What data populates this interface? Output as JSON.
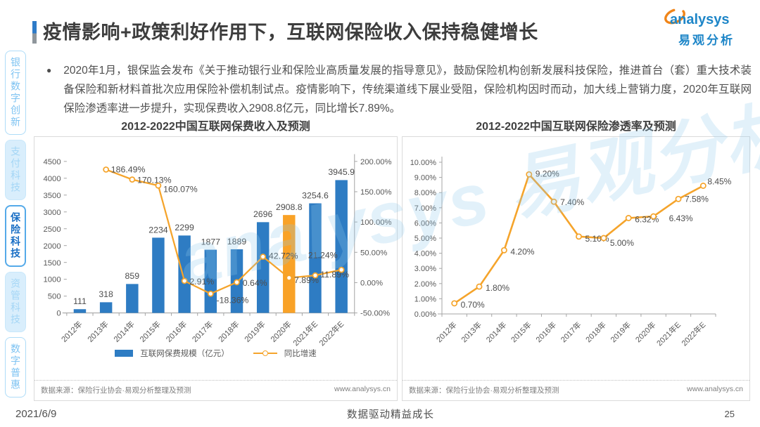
{
  "header": {
    "title": "疫情影响+政策利好作用下，互联网保险收入保持稳健增长"
  },
  "logo": {
    "brand": "analysys",
    "brand_cn": "易观分析",
    "watermark": "analysys 易观分析"
  },
  "sidebar": {
    "items": [
      {
        "label": "银行数字创新",
        "active": false
      },
      {
        "label": "支付科技",
        "active": false
      },
      {
        "label": "保险科技",
        "active": true
      },
      {
        "label": "资管科技",
        "active": false
      },
      {
        "label": "数字普惠",
        "active": false
      }
    ]
  },
  "bullet": {
    "marker": "●",
    "text": "2020年1月，银保监会发布《关于推动银行业和保险业高质量发展的指导意见》，鼓励保险机构创新发展科技保险，推进首台（套）重大技术装备保险和新材料首批次应用保险补偿机制试点。疫情影响下，传统渠道线下展业受阻，保险机构因时而动，加大线上营销力度，2020年互联网保险渗透率进一步提升，实现保费收入2908.8亿元，同比增长7.89%。"
  },
  "chart_data": [
    {
      "type": "bar",
      "title": "2012-2022中国互联网保费收入及预测",
      "categories": [
        "2012年",
        "2013年",
        "2014年",
        "2015年",
        "2016年",
        "2017年",
        "2018年",
        "2019年",
        "2020年",
        "2021年E",
        "2022年E"
      ],
      "series": [
        {
          "name": "互联网保费规模（亿元）",
          "kind": "bar",
          "values": [
            111,
            318,
            859,
            2234,
            2299,
            1877,
            1889,
            2696,
            2908.8,
            3254.6,
            3945.9
          ],
          "labels": [
            "111",
            "318",
            "859",
            "2234",
            "2299",
            "1877",
            "1889",
            "2696",
            "2908.8",
            "3254.6",
            "3945.9"
          ],
          "color": "#2E7CC3",
          "highlight_index": 8,
          "highlight_color": "#F9A227"
        },
        {
          "name": "同比增速",
          "kind": "line",
          "x_start_index": 1,
          "values": [
            186.49,
            170.13,
            160.07,
            2.91,
            -18.36,
            0.64,
            42.72,
            7.89,
            11.89,
            21.24
          ],
          "labels": [
            "186.49%",
            "170.13%",
            "160.07%",
            "2.91%",
            "-18.36%",
            "0.64%",
            "42.72%",
            "7.89%",
            "11.89%",
            "21.24%"
          ],
          "label_offsets": [
            [
              7,
              4
            ],
            [
              7,
              5
            ],
            [
              7,
              9
            ],
            [
              7,
              5
            ],
            [
              8,
              13
            ],
            [
              8,
              5
            ],
            [
              8,
              3
            ],
            [
              7,
              7
            ],
            [
              7,
              3
            ],
            [
              -46,
              -16
            ]
          ],
          "color": "#F5A42B"
        }
      ],
      "y_left": {
        "min": 0,
        "max": 4500,
        "step": 500
      },
      "y_right": {
        "min": -50,
        "max": 200,
        "step": 50,
        "format": "percent2"
      },
      "grid": false,
      "legend_position": "bottom",
      "source": "数据来源：保险行业协会·易观分析整理及预测",
      "site": "www.analysys.cn"
    },
    {
      "type": "line",
      "title": "2012-2022中国互联网保险渗透率及预测",
      "categories": [
        "2012年",
        "2013年",
        "2014年",
        "2015年",
        "2016年",
        "2017年",
        "2018年",
        "2019年",
        "2020年",
        "2021年E",
        "2022年E"
      ],
      "series": [
        {
          "name": "互联网保险渗透率",
          "kind": "line",
          "x_start_index": 0,
          "values": [
            0.7,
            1.8,
            4.2,
            9.2,
            7.4,
            5.1,
            5.0,
            6.32,
            6.43,
            7.58,
            8.45
          ],
          "labels": [
            "0.70%",
            "1.80%",
            "4.20%",
            "9.20%",
            "7.40%",
            "5.10%",
            "5.00%",
            "6.32%",
            "6.43%",
            "7.58%",
            "8.45%"
          ],
          "label_offsets": [
            [
              9,
              6
            ],
            [
              9,
              6
            ],
            [
              9,
              6
            ],
            [
              9,
              3
            ],
            [
              9,
              5
            ],
            [
              9,
              7
            ],
            [
              9,
              11
            ],
            [
              9,
              6
            ],
            [
              22,
              7
            ],
            [
              9,
              4
            ],
            [
              6,
              -2
            ]
          ],
          "color": "#F5A42B"
        }
      ],
      "y_left": {
        "min": 0,
        "max": 10,
        "step": 1,
        "format": "percent2"
      },
      "grid": false,
      "legend_position": "none",
      "source": "数据来源：保险行业协会·易观分析整理及预测",
      "site": "www.analysys.cn"
    }
  ],
  "footer": {
    "date": "2021/6/9",
    "slogan": "数据驱动精益成长",
    "page_number": "25"
  }
}
